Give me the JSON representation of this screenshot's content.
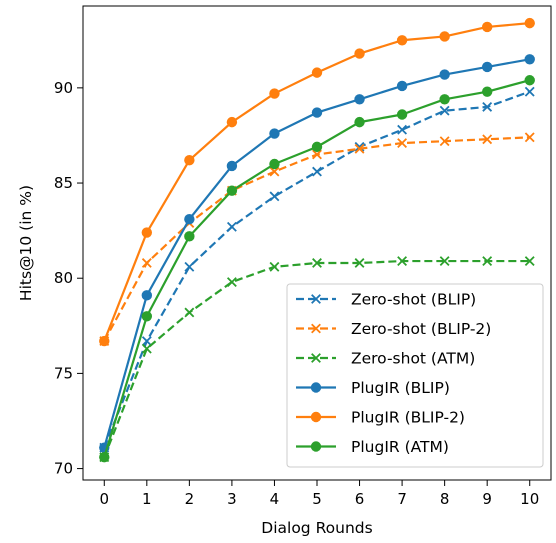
{
  "chart_data": {
    "type": "line",
    "title": "",
    "xlabel": "Dialog Rounds",
    "ylabel": "Hits@10 (in %)",
    "x": [
      0,
      1,
      2,
      3,
      4,
      5,
      6,
      7,
      8,
      9,
      10
    ],
    "xlim": [
      -0.5,
      10.5
    ],
    "ylim": [
      69.4,
      94.3
    ],
    "yticks": [
      70,
      75,
      80,
      85,
      90
    ],
    "grid": false,
    "legend_position": "lower-right",
    "series": [
      {
        "name": "Zero-shot (BLIP)",
        "color": "#1f77b4",
        "linestyle": "dashed",
        "marker": "x",
        "values": [
          71.1,
          76.7,
          80.6,
          82.7,
          84.3,
          85.6,
          86.9,
          87.8,
          88.8,
          89.0,
          89.8
        ]
      },
      {
        "name": "Zero-shot (BLIP-2)",
        "color": "#ff7f0e",
        "linestyle": "dashed",
        "marker": "x",
        "values": [
          76.7,
          80.8,
          82.9,
          84.6,
          85.6,
          86.5,
          86.8,
          87.1,
          87.2,
          87.3,
          87.4
        ]
      },
      {
        "name": "Zero-shot (ATM)",
        "color": "#2ca02c",
        "linestyle": "dashed",
        "marker": "x",
        "values": [
          70.6,
          76.3,
          78.2,
          79.8,
          80.6,
          80.8,
          80.8,
          80.9,
          80.9,
          80.9,
          80.9
        ]
      },
      {
        "name": "PlugIR (BLIP)",
        "color": "#1f77b4",
        "linestyle": "solid",
        "marker": "o",
        "values": [
          71.1,
          79.1,
          83.1,
          85.9,
          87.6,
          88.7,
          89.4,
          90.1,
          90.7,
          91.1,
          91.5
        ]
      },
      {
        "name": "PlugIR (BLIP-2)",
        "color": "#ff7f0e",
        "linestyle": "solid",
        "marker": "o",
        "values": [
          76.7,
          82.4,
          86.2,
          88.2,
          89.7,
          90.8,
          91.8,
          92.5,
          92.7,
          93.2,
          93.4
        ]
      },
      {
        "name": "PlugIR (ATM)",
        "color": "#2ca02c",
        "linestyle": "solid",
        "marker": "o",
        "values": [
          70.6,
          78.0,
          82.2,
          84.6,
          86.0,
          86.9,
          88.2,
          88.6,
          89.4,
          89.8,
          90.4
        ]
      }
    ]
  }
}
